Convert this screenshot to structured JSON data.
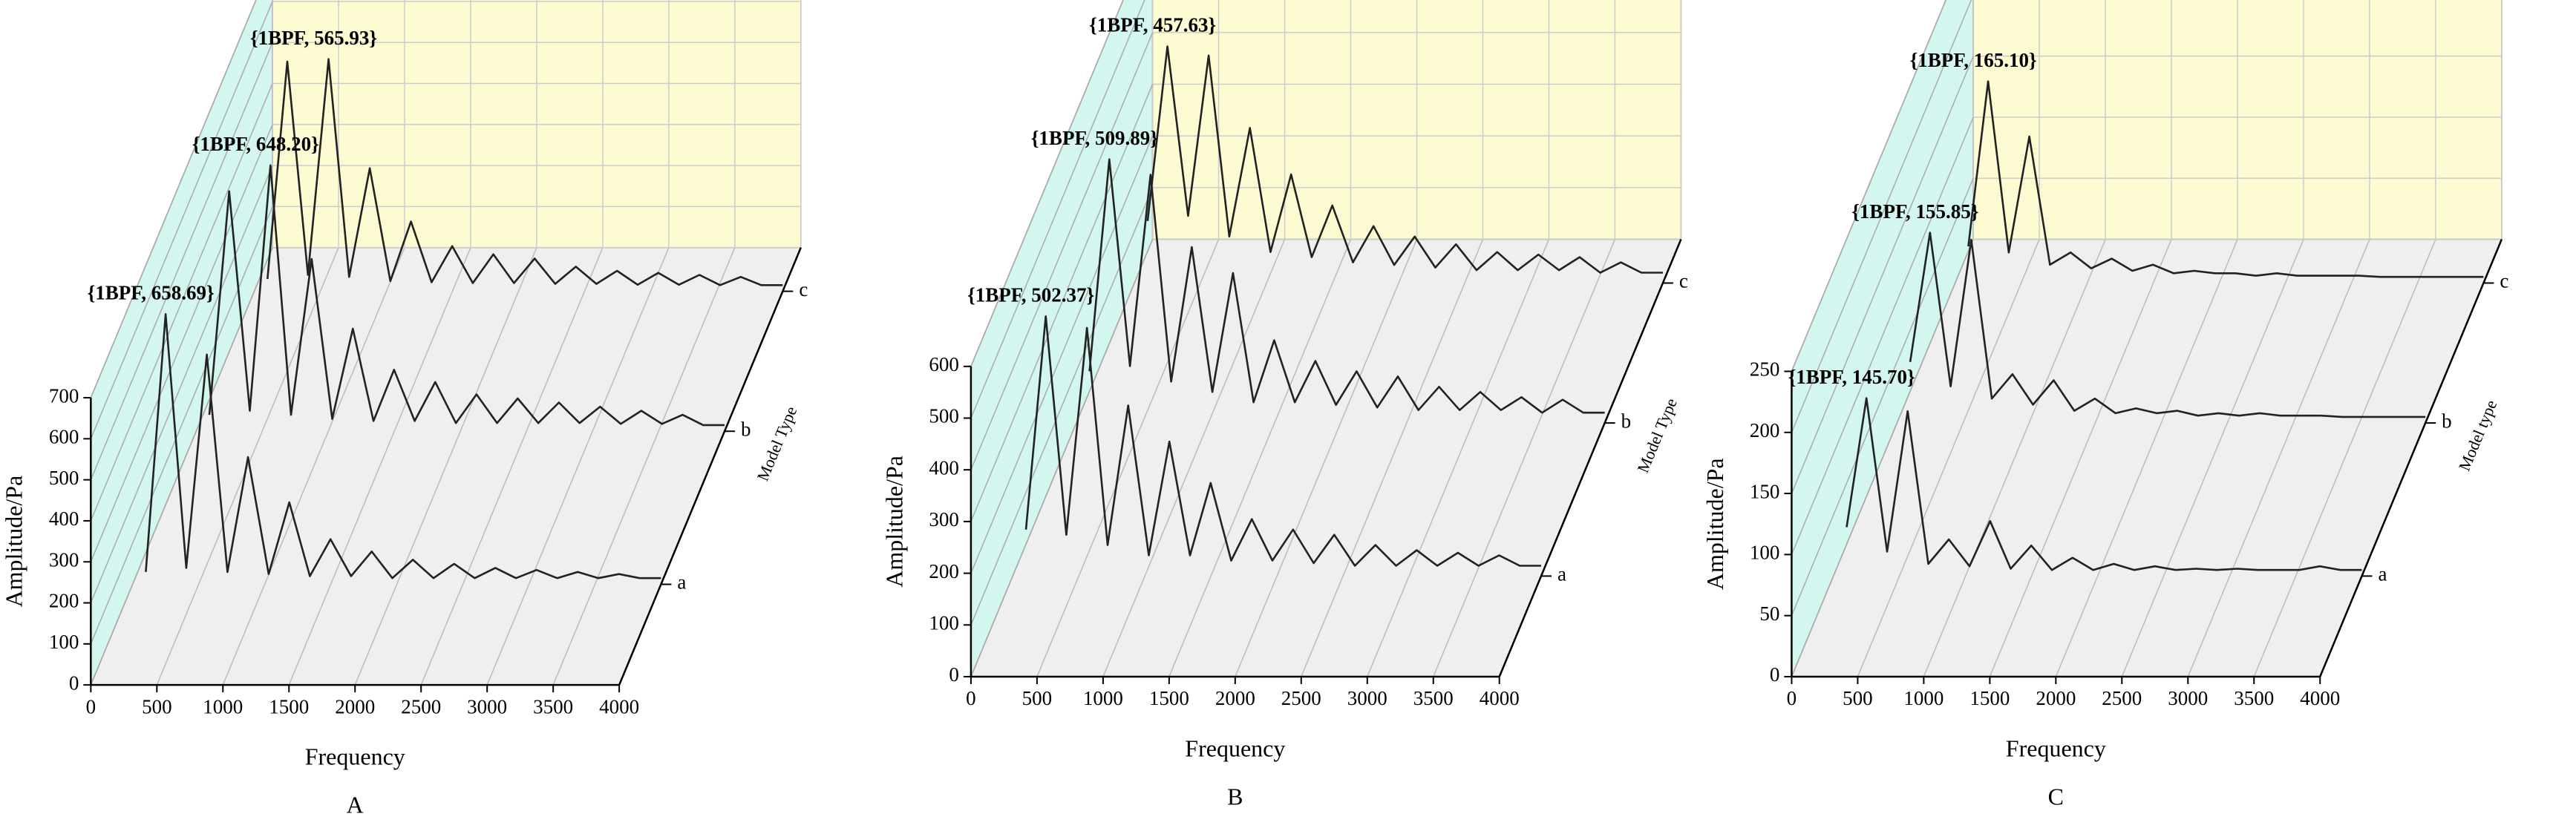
{
  "chart_data": [
    {
      "type": "waterfall",
      "caption": "A",
      "xlabel": "Frequency",
      "ylabel": "Amplitude/Pa",
      "zlabel": "Model Type",
      "xlim": [
        0,
        4000
      ],
      "xticks": [
        0,
        500,
        1000,
        1500,
        2000,
        2500,
        3000,
        3500,
        4000
      ],
      "ylim": [
        0,
        700
      ],
      "yticks": [
        0,
        100,
        200,
        300,
        400,
        500,
        600,
        700
      ],
      "grid": true,
      "x": [
        100,
        250,
        406,
        562,
        718,
        874,
        1030,
        1186,
        1342,
        1498,
        1654,
        1810,
        1966,
        2122,
        2278,
        2434,
        2590,
        2746,
        2902,
        3058,
        3214,
        3370,
        3526,
        3682,
        3838,
        4000
      ],
      "series": [
        {
          "name": "a",
          "color": "#222222",
          "annotation": "{1BPF, 658.69}",
          "values": [
            30,
            658.69,
            40,
            560,
            30,
            310,
            25,
            200,
            20,
            110,
            20,
            80,
            15,
            60,
            15,
            50,
            15,
            40,
            15,
            35,
            15,
            30,
            15,
            25,
            15,
            15
          ]
        },
        {
          "name": "b",
          "color": "#222222",
          "annotation": "{1BPF, 648.20}",
          "values": [
            40,
            585,
            50,
            648.2,
            40,
            420,
            30,
            250,
            25,
            150,
            25,
            120,
            20,
            90,
            20,
            80,
            20,
            70,
            20,
            60,
            18,
            50,
            18,
            40,
            15,
            15
          ]
        },
        {
          "name": "c",
          "color": "#222222",
          "annotation": "{1BPF, 565.93}",
          "values": [
            30,
            560,
            40,
            565.93,
            35,
            300,
            25,
            170,
            22,
            110,
            20,
            90,
            20,
            80,
            18,
            60,
            18,
            50,
            16,
            45,
            16,
            40,
            15,
            35,
            15,
            15
          ]
        }
      ]
    },
    {
      "type": "waterfall",
      "caption": "B",
      "xlabel": "Frequency",
      "ylabel": "Amplitude/Pa",
      "zlabel": "Model Type",
      "xlim": [
        0,
        4000
      ],
      "xticks": [
        0,
        500,
        1000,
        1500,
        2000,
        2500,
        3000,
        3500,
        4000
      ],
      "ylim": [
        0,
        600
      ],
      "yticks": [
        0,
        100,
        200,
        300,
        400,
        500,
        600
      ],
      "grid": true,
      "x": [
        100,
        250,
        406,
        562,
        718,
        874,
        1030,
        1186,
        1342,
        1498,
        1654,
        1810,
        1966,
        2122,
        2278,
        2434,
        2590,
        2746,
        2902,
        3058,
        3214,
        3370,
        3526,
        3682,
        3838,
        4000
      ],
      "series": [
        {
          "name": "a",
          "color": "#222222",
          "annotation": "{1BPF, 502.37}",
          "values": [
            90,
            502.37,
            80,
            480,
            60,
            330,
            40,
            260,
            40,
            180,
            30,
            110,
            30,
            90,
            25,
            80,
            20,
            60,
            20,
            50,
            20,
            45,
            20,
            40,
            20,
            20
          ]
        },
        {
          "name": "b",
          "color": "#222222",
          "annotation": "{1BPF, 509.89}",
          "values": [
            100,
            509.89,
            110,
            480,
            80,
            340,
            60,
            290,
            40,
            160,
            40,
            120,
            35,
            100,
            30,
            90,
            25,
            70,
            25,
            60,
            25,
            50,
            20,
            45,
            20,
            20
          ]
        },
        {
          "name": "c",
          "color": "#222222",
          "annotation": "{1BPF, 457.63}",
          "values": [
            120,
            457.63,
            130,
            440,
            90,
            300,
            60,
            210,
            50,
            150,
            40,
            110,
            35,
            90,
            30,
            75,
            25,
            60,
            25,
            55,
            25,
            50,
            20,
            40,
            20,
            20
          ]
        }
      ]
    },
    {
      "type": "waterfall",
      "caption": "C",
      "xlabel": "Frequency",
      "ylabel": "Amplitude/Pa",
      "zlabel": "Model type",
      "xlim": [
        0,
        4000
      ],
      "xticks": [
        0,
        500,
        1000,
        1500,
        2000,
        2500,
        3000,
        3500,
        4000
      ],
      "ylim": [
        0,
        250
      ],
      "yticks": [
        0,
        50,
        100,
        150,
        200,
        250
      ],
      "grid": true,
      "x": [
        100,
        250,
        406,
        562,
        718,
        874,
        1030,
        1186,
        1342,
        1498,
        1654,
        1810,
        1966,
        2122,
        2278,
        2434,
        2590,
        2746,
        2902,
        3058,
        3214,
        3370,
        3526,
        3682,
        3838,
        4000
      ],
      "series": [
        {
          "name": "a",
          "color": "#222222",
          "annotation": "{1BPF, 145.70}",
          "values": [
            40,
            145.7,
            20,
            135,
            10,
            30,
            8,
            45,
            6,
            25,
            5,
            15,
            5,
            10,
            5,
            8,
            5,
            6,
            5,
            6,
            5,
            5,
            5,
            8,
            5,
            5
          ]
        },
        {
          "name": "b",
          "color": "#222222",
          "annotation": "{1BPF, 155.85}",
          "values": [
            50,
            155.85,
            30,
            150,
            20,
            40,
            15,
            35,
            10,
            20,
            8,
            12,
            8,
            10,
            6,
            8,
            6,
            8,
            6,
            6,
            6,
            5,
            5,
            5,
            5,
            5
          ]
        },
        {
          "name": "c",
          "color": "#222222",
          "annotation": "{1BPF, 165.10}",
          "values": [
            30,
            165.1,
            25,
            120,
            15,
            25,
            12,
            20,
            10,
            15,
            8,
            10,
            8,
            8,
            6,
            8,
            6,
            6,
            6,
            6,
            5,
            5,
            5,
            5,
            5,
            5
          ]
        }
      ]
    }
  ]
}
